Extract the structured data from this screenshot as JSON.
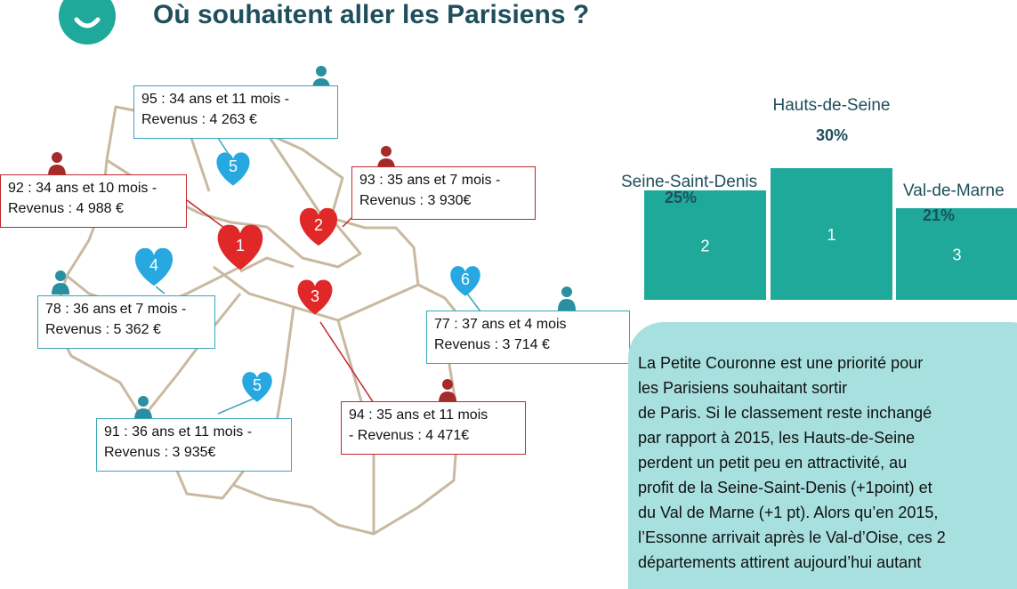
{
  "title": "Où souhaitent aller les Parisiens ?",
  "map_labels": {
    "b95": [
      "95 : 34 ans et 11  mois -",
      "Revenus : 4 263 €"
    ],
    "b92": [
      "92 : 34 ans et 10 mois -",
      "Revenus : 4 988 €"
    ],
    "b93": [
      "93 : 35 ans et 7 mois  -",
      "Revenus : 3 930€"
    ],
    "b78": [
      "78 : 36 ans et 7 mois -",
      "Revenus : 5 362 €"
    ],
    "b77": [
      "77 : 37 ans et 4 mois",
      "Revenus : 3 714 €"
    ],
    "b94": [
      "94 : 35 ans et 11 mois",
      "- Revenus : 4 471€"
    ],
    "b91": [
      "91 : 36 ans et 11  mois -",
      "Revenus : 3 935€"
    ]
  },
  "hearts": {
    "h95": "5",
    "h92": "1",
    "h93": "2",
    "h78": "4",
    "h94": "3",
    "h77": "6",
    "h91": "5"
  },
  "colors": {
    "teal": "#1ea99a",
    "red": "#c0282e",
    "blue": "#28a8e0",
    "person_teal": "#2a8fa0",
    "person_red": "#a52a2a",
    "summary_bg": "#a8e0e0",
    "title": "#1f4f5c"
  },
  "chart_data": {
    "type": "bar",
    "categories": [
      "Seine-Saint-Denis",
      "Hauts-de-Seine",
      "Val-de-Marne"
    ],
    "values": [
      25,
      30,
      21
    ],
    "value_labels": [
      "25%",
      "30%",
      "21%"
    ],
    "ranks": [
      "2",
      "1",
      "3"
    ],
    "ylim": [
      0,
      30
    ]
  },
  "summary_lines": [
    "La Petite Couronne est une priorité pour",
    "les Parisiens souhaitant sortir",
    "de Paris. Si le classement reste inchangé",
    "par rapport à 2015, les Hauts-de-Seine",
    "perdent un petit peu en attractivité, au",
    "profit de la Seine-Saint-Denis (+1point) et",
    "du Val de Marne (+1 pt). Alors qu’en 2015,",
    "l’Essonne arrivait après le Val-d’Oise, ces 2",
    "départements attirent aujourd’hui autant"
  ]
}
